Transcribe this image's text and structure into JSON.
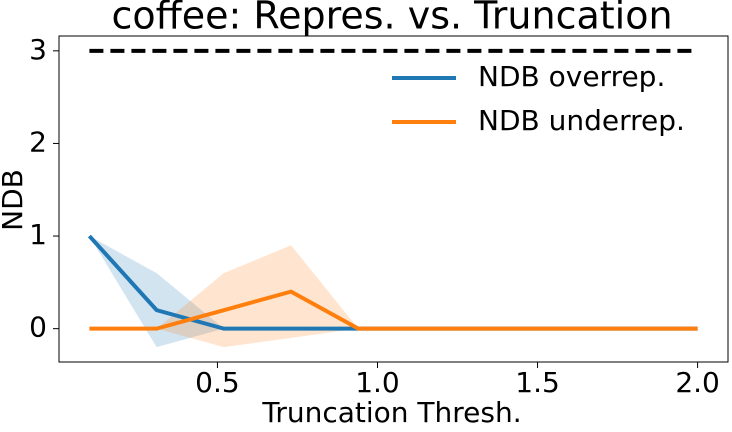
{
  "chart_data": {
    "type": "line",
    "title": "coffee: Repres. vs. Truncation",
    "x_label": "Truncation Thresh.",
    "y_label": "NDB",
    "x": [
      0.1,
      0.31,
      0.52,
      0.73,
      0.94,
      1.16,
      1.37,
      1.58,
      1.79,
      2.0
    ],
    "series": [
      {
        "name": "NDB overrep.",
        "color": "#1f77b4",
        "values": [
          1,
          0.2,
          0,
          0,
          0,
          0,
          0,
          0,
          0,
          0
        ],
        "lower": [
          1,
          -0.2,
          0,
          0,
          0,
          0,
          0,
          0,
          0,
          0
        ],
        "upper": [
          1,
          0.6,
          0,
          0,
          0,
          0,
          0,
          0,
          0,
          0
        ]
      },
      {
        "name": "NDB underrep.",
        "color": "#ff7f0e",
        "values": [
          0,
          0,
          0.2,
          0.4,
          0,
          0,
          0,
          0,
          0,
          0
        ],
        "lower": [
          0,
          0,
          -0.2,
          -0.1,
          0,
          0,
          0,
          0,
          0,
          0
        ],
        "upper": [
          0,
          0,
          0.6,
          0.9,
          0,
          0,
          0,
          0,
          0,
          0
        ]
      }
    ],
    "reference_line": {
      "value": 3,
      "color": "#000000"
    },
    "xlim": [
      0.005,
      2.095
    ],
    "ylim": [
      -0.36,
      3.16
    ],
    "xticks": [
      0.5,
      {
        "value": 1,
        "label": "1.0"
      },
      1.5,
      {
        "value": 2,
        "label": "2.0"
      }
    ],
    "yticks": [
      0,
      1,
      2,
      3
    ],
    "legend": "upper right"
  }
}
